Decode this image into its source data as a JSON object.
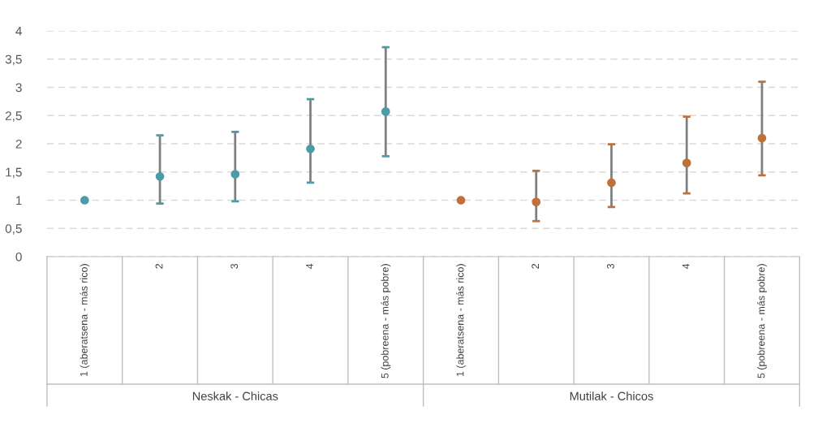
{
  "chart_data": {
    "type": "scatter",
    "categories": [
      "1 (aberatsena - más rico)",
      "2",
      "3",
      "4",
      "5 (pobreena - más pobre)",
      "1 (aberatsena - más rico)",
      "2",
      "3",
      "4",
      "5 (pobreena - más pobre)"
    ],
    "series": [
      {
        "color": "#4a9ca6",
        "values": [
          1.0,
          1.42,
          1.46,
          1.91,
          2.57,
          null,
          null,
          null,
          null,
          null
        ],
        "errors": [
          null,
          [
            0.94,
            2.15
          ],
          [
            0.98,
            2.21
          ],
          [
            1.31,
            2.79
          ],
          [
            1.78,
            3.71
          ],
          null,
          null,
          null,
          null,
          null
        ]
      },
      {
        "color": "#c0713a",
        "values": [
          null,
          null,
          null,
          null,
          null,
          1.0,
          0.97,
          1.31,
          1.66,
          2.1
        ],
        "errors": [
          null,
          null,
          null,
          null,
          null,
          null,
          [
            0.63,
            1.52
          ],
          [
            0.88,
            1.99
          ],
          [
            1.12,
            2.48
          ],
          [
            1.44,
            3.1
          ]
        ]
      }
    ],
    "ylim": [
      0,
      4
    ],
    "yticks": [
      0,
      {
        "value": 0.5,
        "label": "0,5"
      },
      1,
      {
        "value": 1.5,
        "label": "1,5"
      },
      2,
      {
        "value": 2.5,
        "label": "2,5"
      },
      3,
      {
        "value": 3.5,
        "label": "3,5"
      },
      4
    ],
    "grid": "y",
    "marker": "circle",
    "annotations": [
      "Neskak - Chicas",
      "Mutilak - Chicos"
    ]
  }
}
